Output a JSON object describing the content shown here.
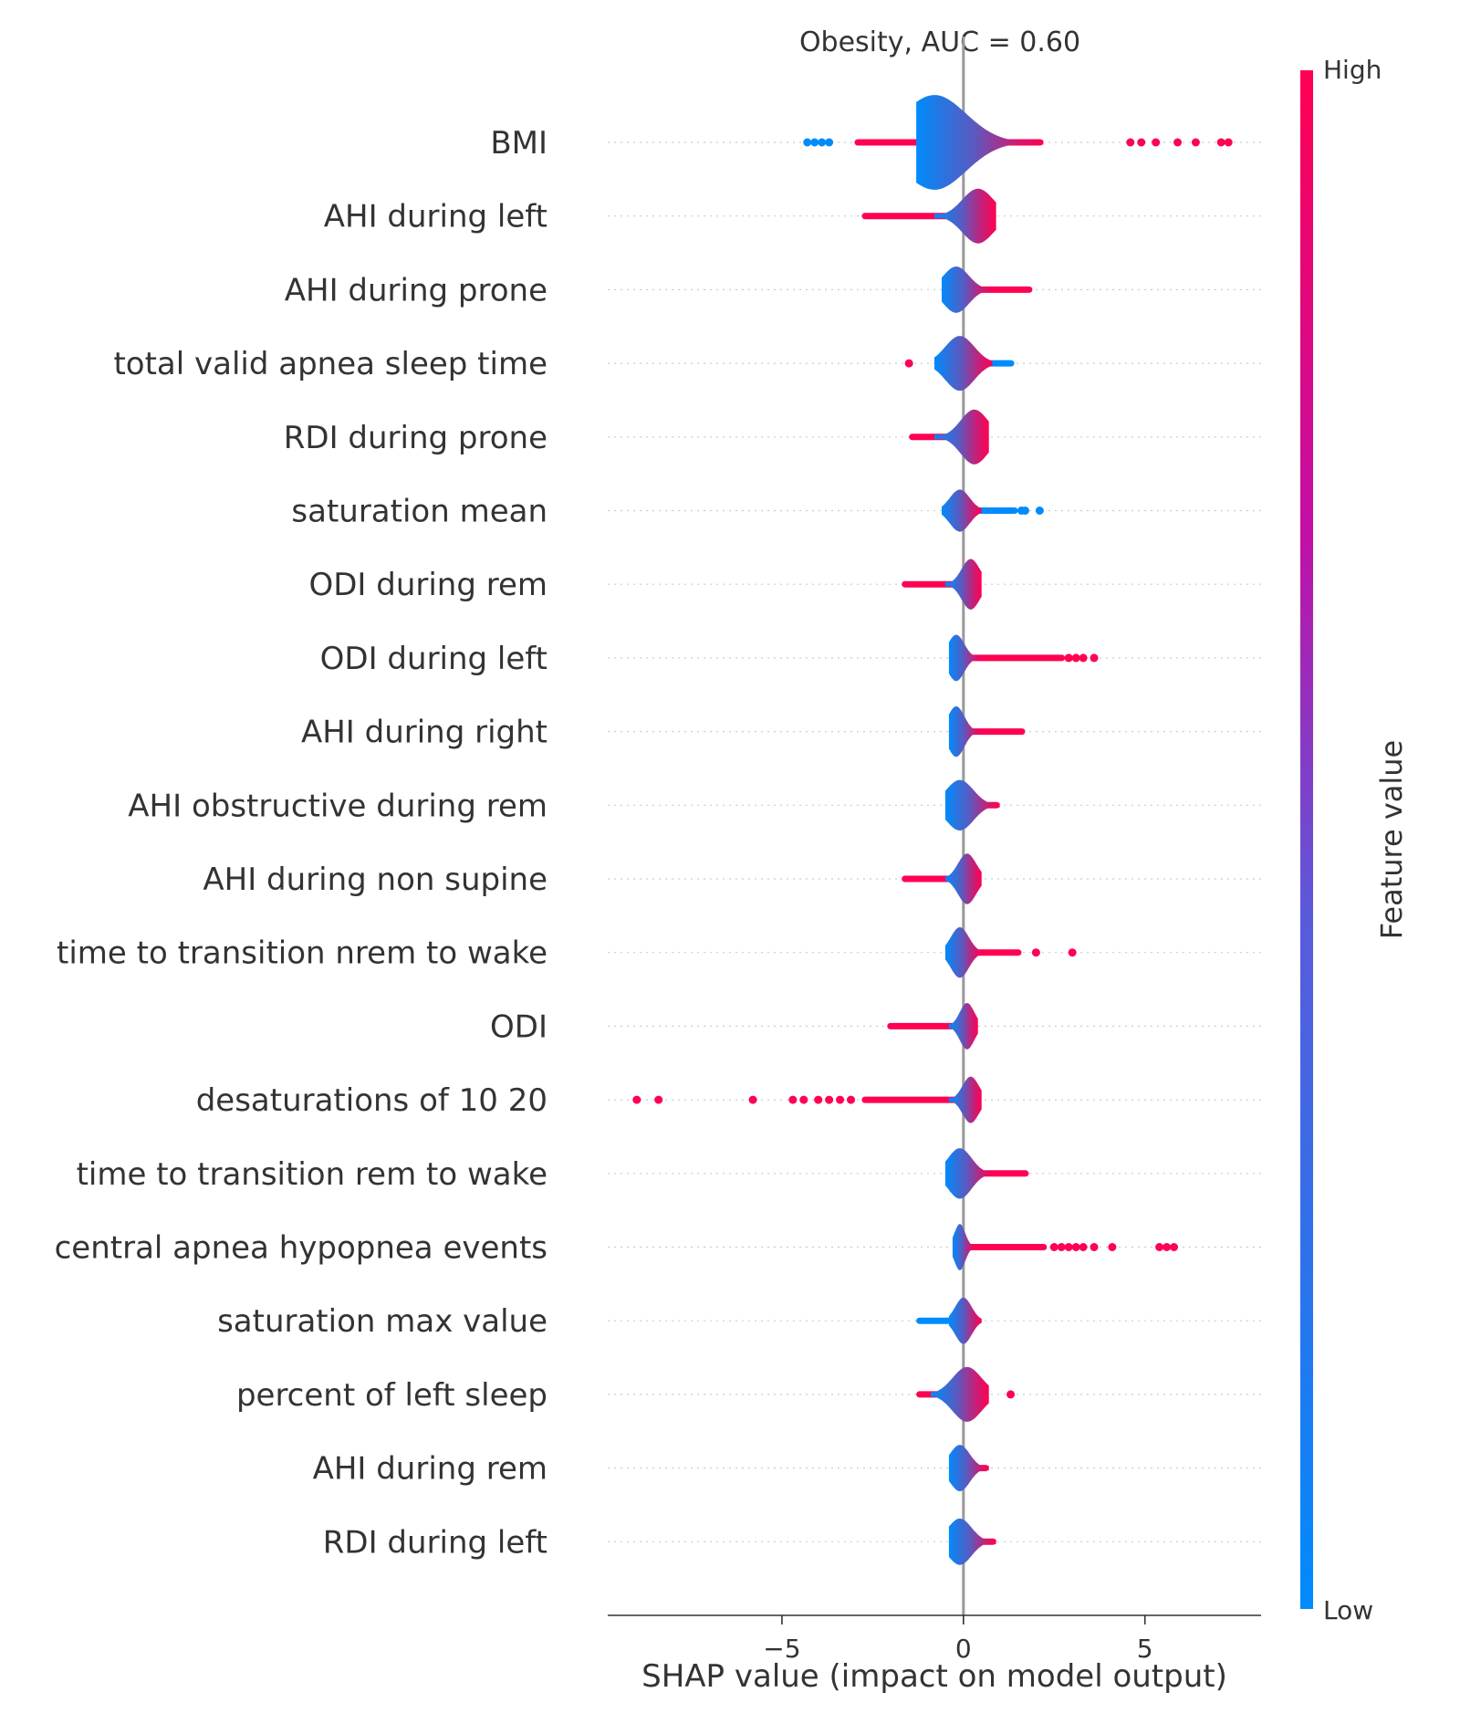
{
  "chart_data": {
    "type": "scatter",
    "title": "Obesity, AUC =  0.60",
    "xlabel": "SHAP value (impact on model output)",
    "xlim": [
      -9.8,
      8.2
    ],
    "xticks": [
      -5,
      0,
      5
    ],
    "xtick_labels": [
      "−5",
      "0",
      "5"
    ],
    "zero_line": 0,
    "grid": false,
    "colorbar": {
      "label": "Feature value",
      "high_label": "High",
      "low_label": "Low",
      "low_color": "#008bfb",
      "high_color": "#ff0052",
      "placement": "right"
    },
    "features": [
      {
        "name": "BMI",
        "min": -4.3,
        "max": 7.4,
        "low": -1.3,
        "high": 2.2,
        "tail": -3.0,
        "peak": -0.8,
        "width": 0.45,
        "tailColor": "high",
        "outliers": [
          -4.3,
          -4.1,
          -3.9,
          -3.7,
          4.6,
          4.9,
          5.3,
          5.9,
          6.4,
          7.1,
          7.3
        ]
      },
      {
        "name": "AHI during left",
        "min": -2.8,
        "max": 1.0,
        "low": -0.8,
        "high": 0.9,
        "tail": -2.8,
        "peak": 0.4,
        "width": 0.26,
        "tailColor": "high",
        "outliers": []
      },
      {
        "name": "AHI during prone",
        "min": -0.6,
        "max": 1.9,
        "low": -0.6,
        "high": 0.8,
        "tail": 1.9,
        "peak": -0.2,
        "width": 0.22,
        "tailColor": "high",
        "outliers": []
      },
      {
        "name": "total valid apnea sleep time",
        "min": -1.5,
        "max": 1.4,
        "low": -0.8,
        "high": 0.8,
        "tail": 1.4,
        "peak": -0.1,
        "width": 0.26,
        "tailColor": "low",
        "outliers": [
          -1.5
        ]
      },
      {
        "name": "RDI during prone",
        "min": -1.5,
        "max": 0.8,
        "low": -0.8,
        "high": 0.7,
        "tail": -1.5,
        "peak": 0.3,
        "width": 0.26,
        "tailColor": "high",
        "outliers": []
      },
      {
        "name": "saturation mean",
        "min": -1.1,
        "max": 2.1,
        "low": -0.6,
        "high": 0.5,
        "tail": 1.5,
        "peak": -0.1,
        "width": 0.2,
        "tailColor": "low",
        "outliers": [
          1.6,
          1.7,
          2.1
        ]
      },
      {
        "name": "ODI during rem",
        "min": -1.7,
        "max": 0.5,
        "low": -0.5,
        "high": 0.5,
        "tail": -1.7,
        "peak": 0.2,
        "width": 0.24,
        "tailColor": "high",
        "outliers": []
      },
      {
        "name": "ODI during left",
        "min": -0.4,
        "max": 3.6,
        "low": -0.4,
        "high": 0.5,
        "tail": 2.8,
        "peak": -0.2,
        "width": 0.22,
        "tailColor": "high",
        "outliers": [
          2.9,
          3.1,
          3.3,
          3.6
        ]
      },
      {
        "name": "AHI during right",
        "min": -0.4,
        "max": 1.7,
        "low": -0.4,
        "high": 0.5,
        "tail": 1.7,
        "peak": -0.2,
        "width": 0.24,
        "tailColor": "high",
        "outliers": []
      },
      {
        "name": "AHI obstructive during rem",
        "min": -0.5,
        "max": 1.0,
        "low": -0.5,
        "high": 1.0,
        "tail": 0.9,
        "peak": -0.1,
        "width": 0.24,
        "tailColor": "high",
        "outliers": []
      },
      {
        "name": "AHI during non supine",
        "min": -1.7,
        "max": 0.5,
        "low": -0.5,
        "high": 0.5,
        "tail": -1.7,
        "peak": 0.1,
        "width": 0.24,
        "tailColor": "high",
        "outliers": []
      },
      {
        "name": "time to transition nrem to wake",
        "min": -0.6,
        "max": 3.0,
        "low": -0.5,
        "high": 0.5,
        "tail": 1.6,
        "peak": -0.1,
        "width": 0.24,
        "tailColor": "high",
        "outliers": [
          2.0,
          3.0
        ]
      },
      {
        "name": "ODI",
        "min": -2.1,
        "max": 0.4,
        "low": -0.4,
        "high": 0.4,
        "tail": -2.1,
        "peak": 0.1,
        "width": 0.22,
        "tailColor": "high",
        "outliers": []
      },
      {
        "name": "desaturations of 10 20",
        "min": -9.0,
        "max": 0.5,
        "low": -0.4,
        "high": 0.5,
        "tail": -2.8,
        "peak": 0.2,
        "width": 0.22,
        "tailColor": "high",
        "outliers": [
          -9.0,
          -8.4,
          -5.8,
          -4.7,
          -4.4,
          -4.0,
          -3.7,
          -3.4,
          -3.1
        ]
      },
      {
        "name": "time to transition rem to wake",
        "min": -0.6,
        "max": 1.9,
        "low": -0.5,
        "high": 0.8,
        "tail": 1.8,
        "peak": -0.1,
        "width": 0.24,
        "tailColor": "high",
        "outliers": []
      },
      {
        "name": "central apnea hypopnea events",
        "min": -0.3,
        "max": 5.8,
        "low": -0.3,
        "high": 0.3,
        "tail": 2.3,
        "peak": -0.1,
        "width": 0.22,
        "tailColor": "high",
        "outliers": [
          2.5,
          2.7,
          2.9,
          3.1,
          3.3,
          3.6,
          4.1,
          5.4,
          5.6,
          5.8
        ]
      },
      {
        "name": "saturation max value",
        "min": -1.3,
        "max": 0.5,
        "low": -0.4,
        "high": 0.5,
        "tail": -1.3,
        "peak": 0.0,
        "width": 0.22,
        "tailColor": "low",
        "outliers": []
      },
      {
        "name": "percent of left sleep",
        "min": -1.3,
        "max": 1.3,
        "low": -0.9,
        "high": 0.7,
        "tail": -1.3,
        "peak": 0.1,
        "width": 0.26,
        "tailColor": "high",
        "outliers": [
          1.3
        ]
      },
      {
        "name": "AHI during rem",
        "min": -0.4,
        "max": 0.7,
        "low": -0.4,
        "high": 0.7,
        "tail": 0.7,
        "peak": -0.1,
        "width": 0.22,
        "tailColor": "high",
        "outliers": []
      },
      {
        "name": "RDI during left",
        "min": -0.4,
        "max": 0.9,
        "low": -0.4,
        "high": 0.9,
        "tail": 0.9,
        "peak": -0.1,
        "width": 0.22,
        "tailColor": "high",
        "outliers": []
      }
    ]
  }
}
